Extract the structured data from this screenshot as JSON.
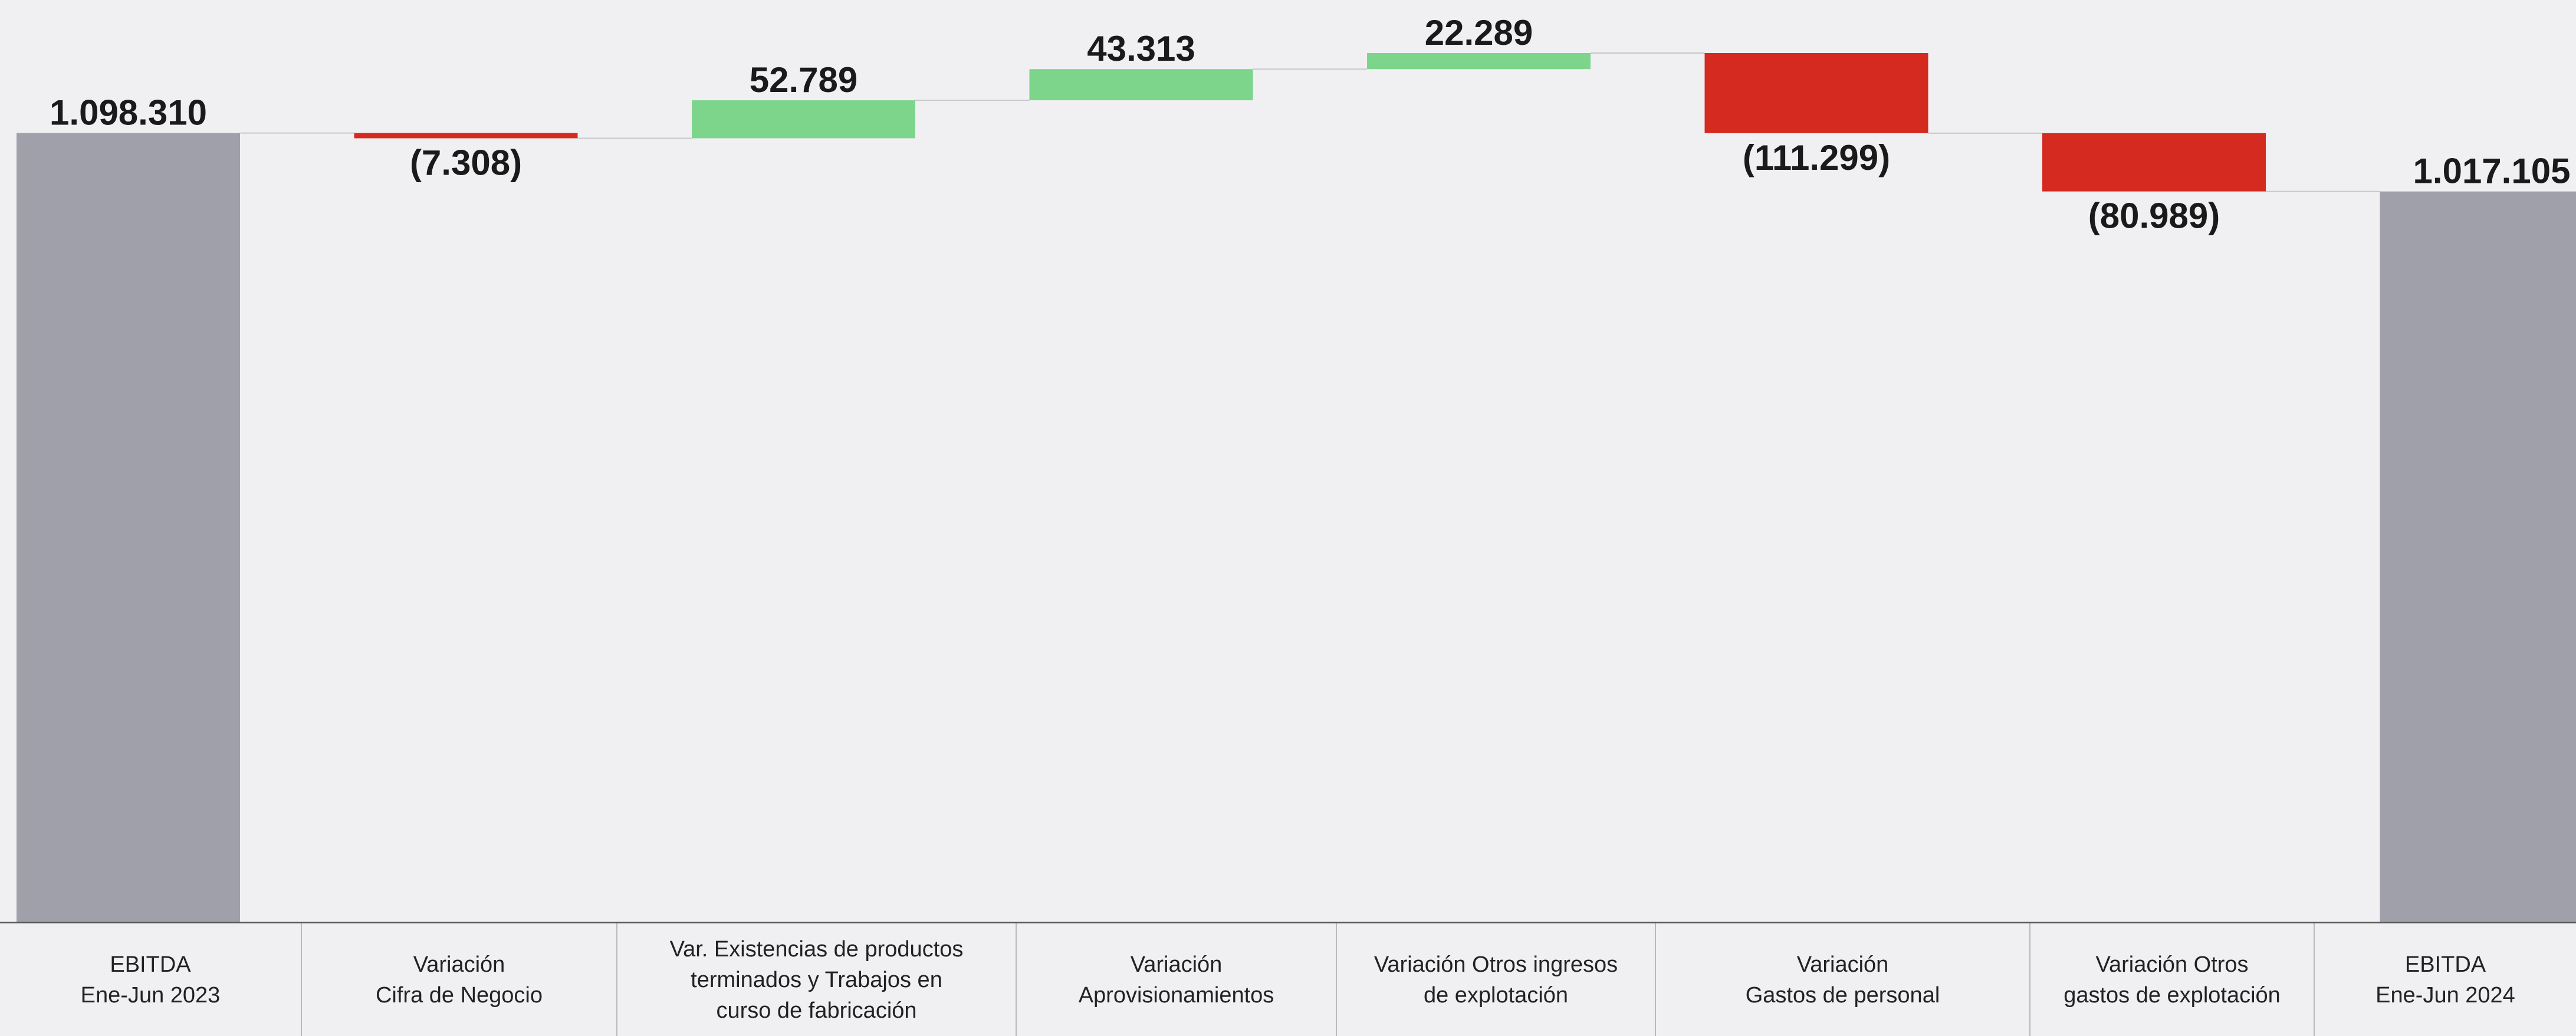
{
  "chart_data": {
    "type": "waterfall",
    "categories": [
      "EBITDA\nEne-Jun 2023",
      "Variación\nCifra de Negocio",
      "Var. Existencias de productos\nterminados y Trabajos en\ncurso de fabricación",
      "Variación\nAprovisionamientos",
      "Variación Otros ingresos\nde explotación",
      "Variación\nGastos de personal",
      "Variación Otros\ngastos de explotación",
      "EBITDA\nEne-Jun 2024"
    ],
    "values": [
      1098310,
      -7308,
      52789,
      43313,
      22289,
      -111299,
      -80989,
      1017105
    ],
    "value_labels": [
      "1.098.310",
      "(7.308)",
      "52.789",
      "43.313",
      "22.289",
      "(111.299)",
      "(80.989)",
      "1.017.105"
    ],
    "is_total": [
      true,
      false,
      false,
      false,
      false,
      false,
      false,
      true
    ],
    "colors": {
      "total": "#a0a0ab",
      "increase": "#7dd58c",
      "decrease": "#d52a20"
    }
  }
}
